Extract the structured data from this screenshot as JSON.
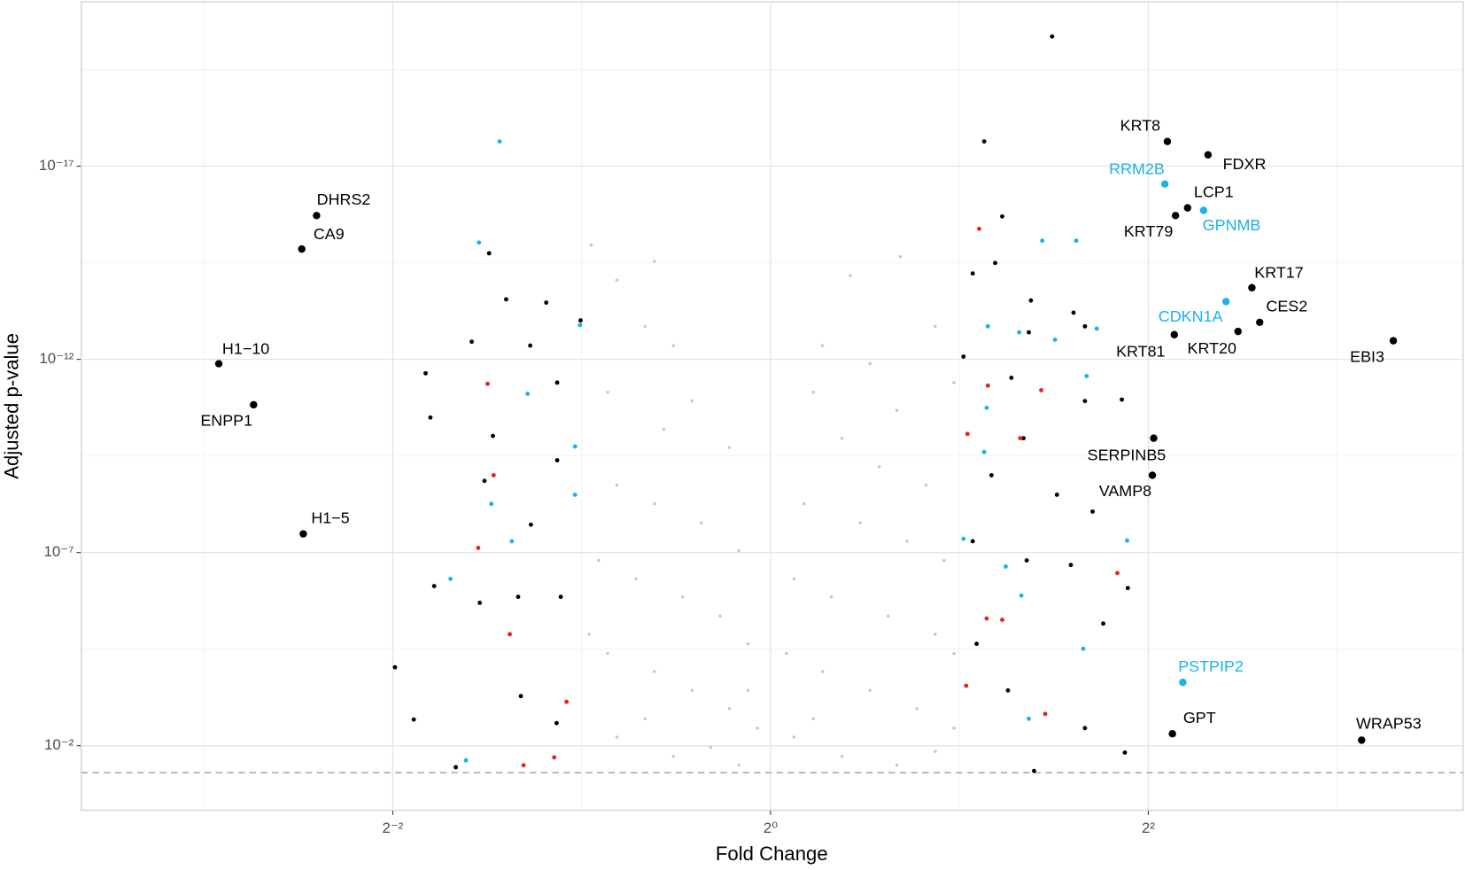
{
  "chart_data": {
    "type": "scatter",
    "xlabel": "Fold Change",
    "ylabel": "Adjusted p-value",
    "xscale": "log2",
    "yscale": "log10",
    "xlim": [
      0.0797,
      12.7
    ],
    "ylim": [
      0.468,
      5.6e-22
    ],
    "xticks": [
      {
        "value": 0.25,
        "label": "2⁻²"
      },
      {
        "value": 1,
        "label": "2⁰"
      },
      {
        "value": 4,
        "label": "2²"
      }
    ],
    "yticks": [
      {
        "value": 0.01,
        "label": "10⁻²"
      },
      {
        "value": 1e-07,
        "label": "10⁻⁷"
      },
      {
        "value": 1e-12,
        "label": "10⁻¹²"
      },
      {
        "value": 1e-17,
        "label": "10⁻¹⁷"
      }
    ],
    "xminorticks": [
      0.125,
      0.5,
      2,
      8
    ],
    "yminorticks": [
      3.16e-05,
      3.16e-10,
      3.16e-15,
      3.16e-20
    ],
    "grid": true,
    "hline": 0.05,
    "series": [
      {
        "color": "#c8c8c8",
        "x": [
          0.518,
          0.569,
          0.653,
          0.631,
          0.7,
          0.55,
          0.75,
          0.676,
          0.86,
          0.569,
          0.653,
          0.776,
          0.89,
          0.532,
          0.61,
          0.724,
          0.831,
          0.921,
          0.55,
          0.653,
          0.75,
          0.86,
          0.953,
          0.569,
          0.7,
          0.89,
          0.803,
          0.631,
          0.514,
          0.921,
          1.61,
          1.34,
          1.21,
          1.44,
          1.83,
          1.17,
          1.59,
          1.96,
          1.3,
          1.49,
          1.77,
          1.13,
          1.39,
          1.65,
          1.89,
          1.09,
          1.25,
          1.54,
          1.83,
          1.06,
          1.21,
          1.44,
          1.71,
          1.96,
          1.09,
          1.3,
          1.59,
          1.83,
          1.17,
          1.96
        ],
        "values": [
          1.1e-15,
          8.9e-15,
          2.9e-15,
          1.4e-13,
          4.4e-13,
          7.1e-12,
          1.2e-11,
          6.5e-11,
          1.9e-10,
          1.8e-09,
          5.5e-09,
          1.7e-08,
          8.9e-08,
          1.6e-07,
          4.8e-07,
          1.4e-06,
          4.4e-06,
          2.3e-05,
          4.1e-05,
          0.00012,
          0.00037,
          0.0011,
          0.0035,
          0.006,
          0.019,
          0.032,
          0.011,
          0.002,
          1.3e-05,
          0.00037,
          2.2e-15,
          6.8e-15,
          4.4e-13,
          1.3e-12,
          1.4e-13,
          7.1e-12,
          2.1e-11,
          4e-12,
          1.1e-10,
          6e-10,
          1.8e-09,
          5.5e-09,
          1.7e-08,
          5.1e-08,
          1.6e-07,
          4.8e-07,
          1.4e-06,
          4.4e-06,
          1.3e-05,
          4.1e-05,
          0.00012,
          0.00037,
          0.0011,
          0.0035,
          0.006,
          0.019,
          0.032,
          0.014,
          0.002,
          4.1e-05
        ]
      },
      {
        "color": "#000000",
        "x": [
          2.81,
          2.19,
          2.34,
          2.1,
          2.28,
          2.6,
          3.04,
          2.58,
          3.17,
          2.03,
          2.42,
          3.17,
          3.63,
          2.53,
          2.25,
          2.86,
          3.26,
          2.1,
          2.56,
          3.01,
          3.71,
          3.39,
          2.13,
          2.39,
          3.17,
          3.67,
          2.63,
          0.356,
          0.379,
          0.439,
          0.334,
          0.414,
          0.282,
          0.457,
          0.287,
          0.361,
          0.457,
          0.35,
          0.415,
          0.291,
          0.344,
          0.396,
          0.463,
          0.252,
          0.4,
          0.27,
          0.456,
          0.315,
          0.498
        ],
        "values": [
          4.4e-21,
          2.3e-18,
          2e-16,
          6e-15,
          3.2e-15,
          3e-14,
          6.2e-14,
          2e-13,
          1.4e-13,
          8.5e-13,
          3e-12,
          1.2e-11,
          1.1e-11,
          1.1e-10,
          1e-09,
          3.2e-09,
          8.7e-09,
          5.1e-08,
          1.6e-07,
          2.1e-07,
          8.3e-07,
          6.9e-06,
          2.3e-05,
          0.00037,
          0.0035,
          0.015,
          0.045,
          1.8e-15,
          2.8e-14,
          3.4e-14,
          3.5e-13,
          4.4e-13,
          2.3e-12,
          4e-12,
          3.2e-11,
          9.6e-11,
          4.1e-10,
          1.4e-09,
          1.9e-08,
          7.4e-07,
          2e-06,
          1.4e-06,
          1.4e-06,
          9.3e-05,
          0.00052,
          0.0021,
          0.0026,
          0.036,
          9.8e-14
        ]
      },
      {
        "color": "#1ab2e8",
        "x": [
          0.37,
          0.343,
          0.497,
          0.41,
          0.488,
          0.488,
          0.359,
          0.387,
          0.309,
          0.327,
          2.71,
          3.07,
          2.22,
          2.49,
          2.84,
          3.31,
          3.19,
          2.21,
          2.19,
          2.03,
          2.37,
          3.7,
          2.51,
          3.15,
          2.58
        ],
        "values": [
          2.3e-18,
          9.5e-16,
          1.3e-13,
          7.8e-12,
          1.8e-10,
          3.2e-09,
          5.5e-09,
          5.1e-08,
          4.8e-07,
          0.024,
          8.5e-16,
          8.5e-16,
          1.4e-13,
          2e-13,
          3.1e-13,
          1.6e-13,
          2.7e-12,
          1.8e-11,
          2.5e-10,
          4.4e-08,
          2.3e-07,
          4.9e-08,
          1.3e-06,
          3.1e-05,
          0.002
        ]
      },
      {
        "color": "#e8211d",
        "x": [
          2.15,
          0.354,
          0.362,
          0.342,
          0.384,
          0.473,
          0.452,
          0.404,
          2.22,
          2.7,
          2.06,
          2.5,
          3.57,
          2.21,
          2.34,
          2.05,
          2.74
        ],
        "values": [
          4.2e-16,
          4.3e-12,
          1e-09,
          7.6e-08,
          1.3e-05,
          0.00073,
          0.02,
          0.032,
          4.8e-12,
          6.3e-12,
          8.5e-11,
          1.1e-10,
          3.4e-07,
          5.1e-06,
          5.5e-06,
          0.00028,
          0.0015
        ]
      }
    ],
    "labels": [
      {
        "text": "KRT8",
        "x": 4.29,
        "y": 2.3e-18,
        "color": "#000000"
      },
      {
        "text": "FDXR",
        "x": 4.98,
        "y": 5.1e-18,
        "color": "#000000"
      },
      {
        "text": "RRM2B",
        "x": 4.25,
        "y": 2.9e-17,
        "color": "#1ab2e8"
      },
      {
        "text": "LCP1",
        "x": 4.62,
        "y": 1.2e-16,
        "color": "#000000"
      },
      {
        "text": "GPNMB",
        "x": 4.9,
        "y": 1.4e-16,
        "color": "#1ab2e8"
      },
      {
        "text": "KRT79",
        "x": 4.42,
        "y": 1.9e-16,
        "color": "#000000"
      },
      {
        "text": "KRT17",
        "x": 5.85,
        "y": 1.4e-14,
        "color": "#000000"
      },
      {
        "text": "CDKN1A",
        "x": 5.32,
        "y": 3.2e-14,
        "color": "#1ab2e8"
      },
      {
        "text": "CES2",
        "x": 6.02,
        "y": 1.1e-13,
        "color": "#000000"
      },
      {
        "text": "KRT81",
        "x": 4.4,
        "y": 2.3e-13,
        "color": "#000000"
      },
      {
        "text": "KRT20",
        "x": 5.56,
        "y": 1.9e-13,
        "color": "#000000"
      },
      {
        "text": "EBI3",
        "x": 9.83,
        "y": 3.3e-13,
        "color": "#000000"
      },
      {
        "text": "SERPINB5",
        "x": 4.08,
        "y": 1.1e-10,
        "color": "#000000"
      },
      {
        "text": "VAMP8",
        "x": 4.06,
        "y": 1e-09,
        "color": "#000000"
      },
      {
        "text": "PSTPIP2",
        "x": 4.54,
        "y": 0.00023,
        "color": "#1ab2e8"
      },
      {
        "text": "GPT",
        "x": 4.37,
        "y": 0.0049,
        "color": "#000000"
      },
      {
        "text": "WRAP53",
        "x": 8.75,
        "y": 0.0072,
        "color": "#000000"
      },
      {
        "text": "DHRS2",
        "x": 0.189,
        "y": 1.9e-16,
        "color": "#000000"
      },
      {
        "text": "CA9",
        "x": 0.179,
        "y": 1.4e-15,
        "color": "#000000"
      },
      {
        "text": "H1−10",
        "x": 0.132,
        "y": 1.3e-12,
        "color": "#000000"
      },
      {
        "text": "ENPP1",
        "x": 0.15,
        "y": 1.5e-11,
        "color": "#000000"
      },
      {
        "text": "H1−5",
        "x": 0.18,
        "y": 3.3e-08,
        "color": "#000000"
      }
    ]
  }
}
